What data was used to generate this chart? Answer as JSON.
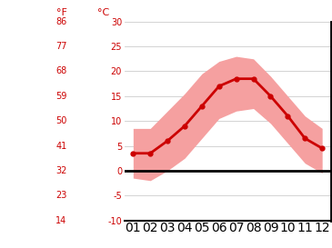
{
  "months": [
    1,
    2,
    3,
    4,
    5,
    6,
    7,
    8,
    9,
    10,
    11,
    12
  ],
  "mean_line": [
    3.5,
    3.5,
    6.0,
    9.0,
    13.0,
    17.0,
    18.5,
    18.5,
    15.0,
    11.0,
    6.5,
    4.5
  ],
  "band_upper": [
    8.5,
    8.5,
    12.0,
    15.5,
    19.5,
    22.0,
    23.0,
    22.5,
    19.0,
    15.0,
    11.0,
    8.5
  ],
  "band_lower": [
    -1.5,
    -2.0,
    0.0,
    2.5,
    6.5,
    10.5,
    12.0,
    12.5,
    9.5,
    5.5,
    1.5,
    -0.5
  ],
  "line_color": "#cc0000",
  "band_color": "#f5a0a0",
  "zero_line_color": "#000000",
  "grid_color": "#cccccc",
  "label_color": "#cc0000",
  "ylim": [
    -10,
    30
  ],
  "yticks_c": [
    -10,
    -5,
    0,
    5,
    10,
    15,
    20,
    25,
    30
  ],
  "yticks_f": [
    14,
    23,
    32,
    41,
    50,
    59,
    68,
    77,
    86
  ],
  "xlim": [
    0.5,
    12.5
  ],
  "xtick_labels": [
    "01",
    "02",
    "03",
    "04",
    "05",
    "06",
    "07",
    "08",
    "09",
    "10",
    "11",
    "12"
  ],
  "ylabel_c": "°C",
  "ylabel_f": "°F",
  "background_color": "#ffffff",
  "fig_width": 3.65,
  "fig_height": 2.73,
  "dpi": 100
}
